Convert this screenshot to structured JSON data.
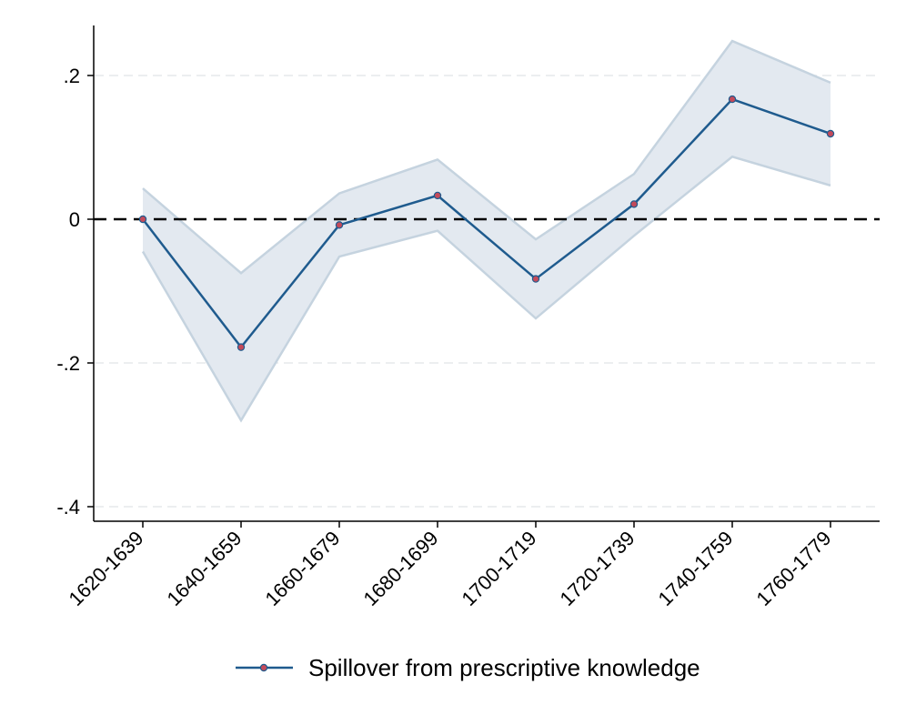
{
  "chart_data": {
    "type": "line",
    "title": "",
    "xlabel": "",
    "ylabel": "",
    "categories": [
      "1620-1639",
      "1640-1659",
      "1660-1679",
      "1680-1699",
      "1700-1719",
      "1720-1739",
      "1740-1759",
      "1760-1779"
    ],
    "series": [
      {
        "name": "Spillover from prescriptive knowledge",
        "values": [
          0.0,
          -0.178,
          -0.008,
          0.033,
          -0.083,
          0.021,
          0.167,
          0.119
        ],
        "ci_lower": [
          -0.045,
          -0.28,
          -0.052,
          -0.016,
          -0.138,
          -0.023,
          0.087,
          0.047
        ],
        "ci_upper": [
          0.043,
          -0.075,
          0.036,
          0.083,
          -0.028,
          0.063,
          0.248,
          0.19
        ],
        "color": "#1f5b8e",
        "marker_color": "#c44a5a",
        "ci_fill_color": "#e3e9f0",
        "ci_line_color": "#c5d3df"
      }
    ],
    "yticks": [
      {
        "value": 0.2,
        "label": ".2"
      },
      {
        "value": 0,
        "label": "0"
      },
      {
        "value": -0.2,
        "label": "-.2"
      },
      {
        "value": -0.4,
        "label": "-.4"
      }
    ],
    "ylim": [
      -0.42,
      0.27
    ],
    "reference_line": {
      "value": 0,
      "style": "dashed",
      "color": "#000000"
    },
    "grid": true,
    "legend": {
      "position": "bottom"
    }
  }
}
